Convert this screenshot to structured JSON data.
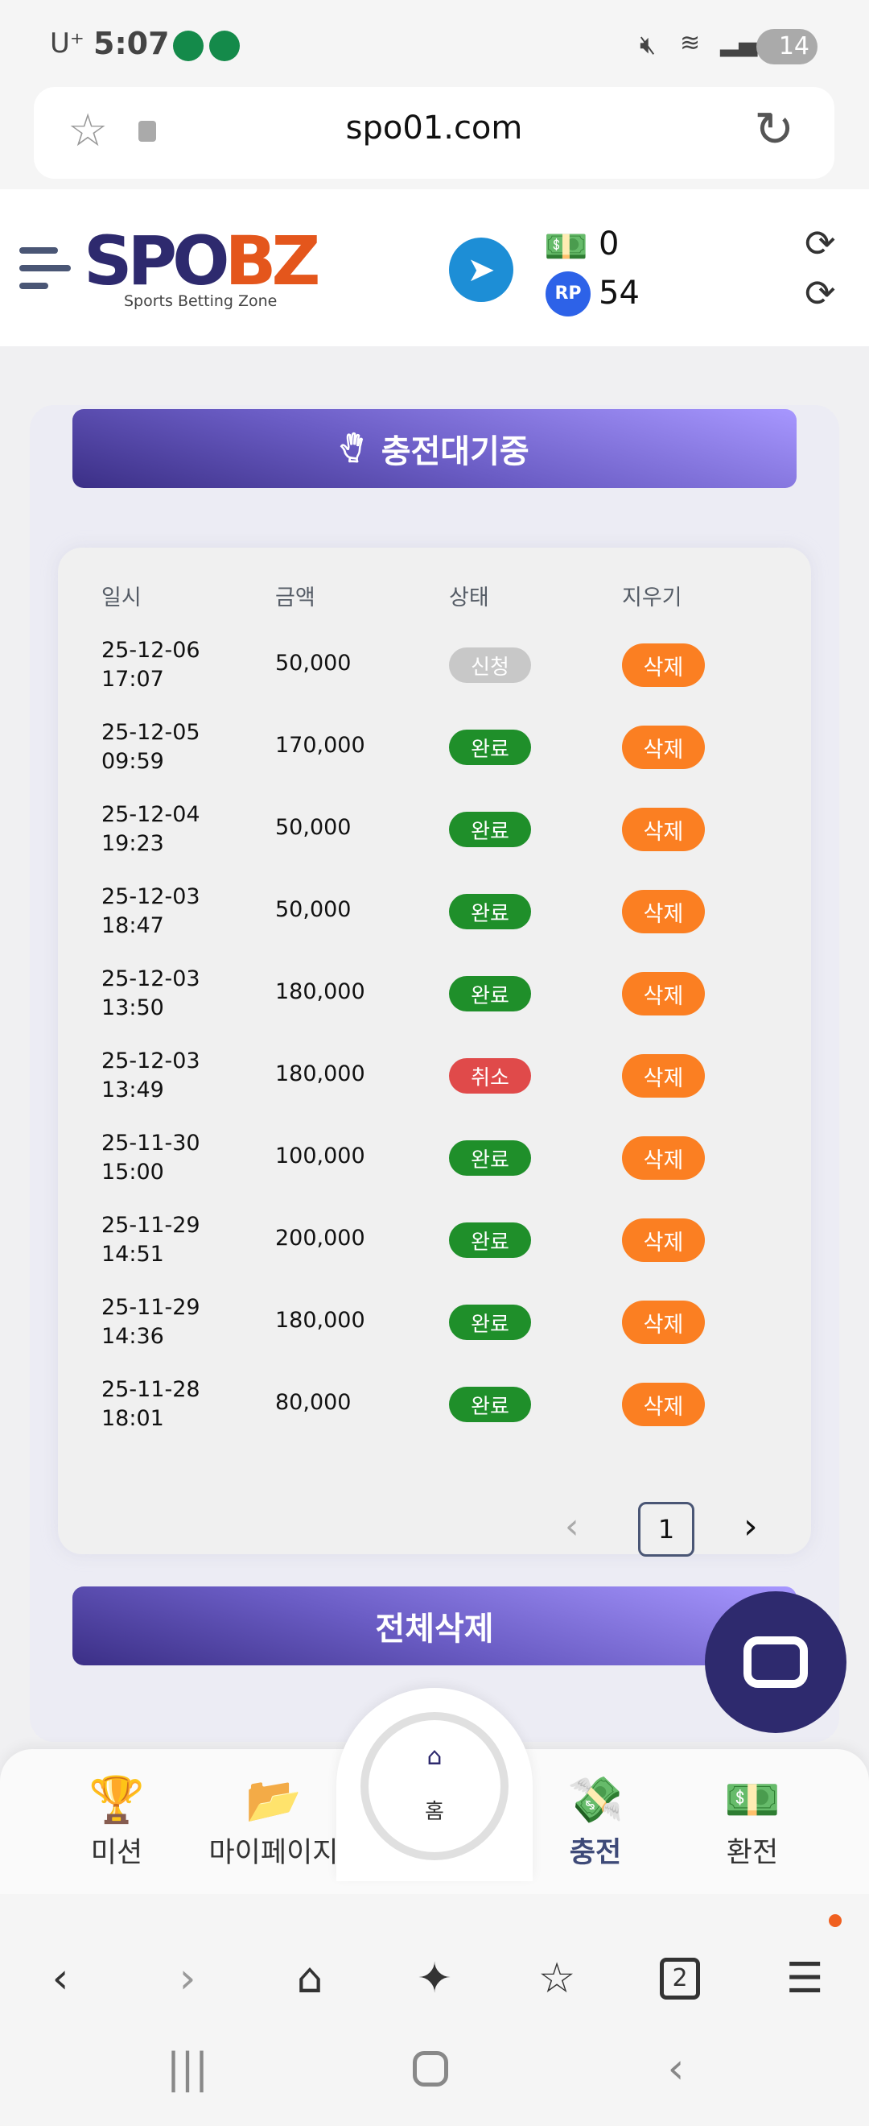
{
  "status_bar": {
    "carrier": "U⁺",
    "time": "5:07",
    "battery": "14"
  },
  "browser": {
    "url": "spo01.com"
  },
  "header": {
    "logo_main": "SPO",
    "logo_accent": "BZ",
    "logo_tagline": "Sports Betting Zone",
    "cash": "0",
    "rp_label": "RP",
    "rp": "54"
  },
  "panel": {
    "title": "충전대기중",
    "columns": [
      "일시",
      "금액",
      "상태",
      "지우기"
    ],
    "rows": [
      {
        "date": "25-12-06",
        "time": "17:07",
        "amount": "50,000",
        "status": "신청",
        "action": "삭제"
      },
      {
        "date": "25-12-05",
        "time": "09:59",
        "amount": "170,000",
        "status": "완료",
        "action": "삭제"
      },
      {
        "date": "25-12-04",
        "time": "19:23",
        "amount": "50,000",
        "status": "완료",
        "action": "삭제"
      },
      {
        "date": "25-12-03",
        "time": "18:47",
        "amount": "50,000",
        "status": "완료",
        "action": "삭제"
      },
      {
        "date": "25-12-03",
        "time": "13:50",
        "amount": "180,000",
        "status": "완료",
        "action": "삭제"
      },
      {
        "date": "25-12-03",
        "time": "13:49",
        "amount": "180,000",
        "status": "취소",
        "action": "삭제"
      },
      {
        "date": "25-11-30",
        "time": "15:00",
        "amount": "100,000",
        "status": "완료",
        "action": "삭제"
      },
      {
        "date": "25-11-29",
        "time": "14:51",
        "amount": "200,000",
        "status": "완료",
        "action": "삭제"
      },
      {
        "date": "25-11-29",
        "time": "14:36",
        "amount": "180,000",
        "status": "완료",
        "action": "삭제"
      },
      {
        "date": "25-11-28",
        "time": "18:01",
        "amount": "80,000",
        "status": "완료",
        "action": "삭제"
      }
    ],
    "pagination": {
      "prev": "‹",
      "current": "1",
      "next": "›"
    },
    "delete_all": "전체삭제"
  },
  "status_colors": {
    "신청": "#c8c8c8",
    "완료": "#1f8f2a",
    "취소": "#e04a4a"
  },
  "bottom_nav": [
    {
      "label": "미션",
      "icon": "trophy-icon"
    },
    {
      "label": "마이페이지",
      "icon": "folder-icon"
    },
    {
      "label": "홈",
      "icon": "home-icon"
    },
    {
      "label": "충전",
      "icon": "deposit-icon"
    },
    {
      "label": "환전",
      "icon": "withdraw-icon"
    }
  ],
  "tab_count": "2"
}
